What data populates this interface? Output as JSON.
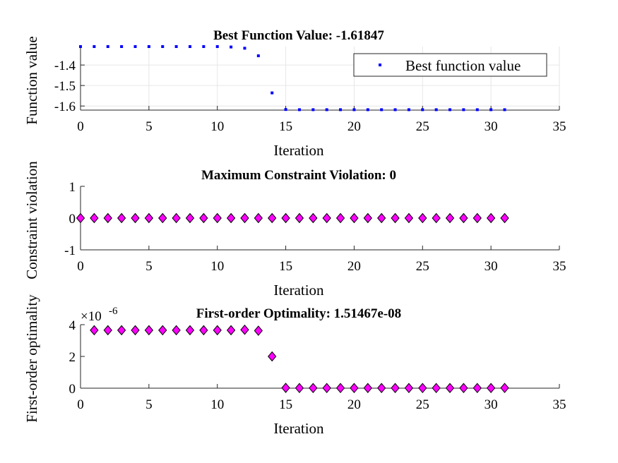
{
  "chart_data": [
    {
      "type": "scatter",
      "title": "Best Function Value: -1.61847",
      "xlabel": "Iteration",
      "ylabel": "Function value",
      "xlim": [
        0,
        35
      ],
      "ylim": [
        -1.62,
        -1.31
      ],
      "xticks": [
        "0",
        "5",
        "10",
        "15",
        "20",
        "25",
        "30",
        "35"
      ],
      "yticks": [
        "-1.4",
        "-1.5",
        "-1.6"
      ],
      "ytick_values": [
        -1.4,
        -1.5,
        -1.6
      ],
      "grid": true,
      "legend": {
        "position": "top-right",
        "entries": [
          "Best function value"
        ]
      },
      "series": [
        {
          "name": "Best function value",
          "color": "#0000ff",
          "marker": "point",
          "x": [
            0,
            1,
            2,
            3,
            4,
            5,
            6,
            7,
            8,
            9,
            10,
            11,
            12,
            13,
            14,
            15,
            16,
            17,
            18,
            19,
            20,
            21,
            22,
            23,
            24,
            25,
            26,
            27,
            28,
            29,
            30,
            31
          ],
          "values": [
            -1.31,
            -1.31,
            -1.31,
            -1.31,
            -1.31,
            -1.31,
            -1.31,
            -1.31,
            -1.31,
            -1.31,
            -1.31,
            -1.312,
            -1.318,
            -1.355,
            -1.536,
            -1.617,
            -1.618,
            -1.618,
            -1.618,
            -1.618,
            -1.618,
            -1.618,
            -1.618,
            -1.618,
            -1.618,
            -1.618,
            -1.618,
            -1.618,
            -1.618,
            -1.618,
            -1.618,
            -1.618
          ]
        }
      ]
    },
    {
      "type": "scatter",
      "title": "Maximum Constraint Violation: 0",
      "xlabel": "Iteration",
      "ylabel": "Constraint violation",
      "xlim": [
        0,
        35
      ],
      "ylim": [
        -1,
        1
      ],
      "xticks": [
        "0",
        "5",
        "10",
        "15",
        "20",
        "25",
        "30",
        "35"
      ],
      "yticks": [
        "1",
        "0",
        "-1"
      ],
      "ytick_values": [
        1,
        0,
        -1
      ],
      "grid": false,
      "series": [
        {
          "color": "#ff00ff",
          "marker": "diamond",
          "x": [
            0,
            1,
            2,
            3,
            4,
            5,
            6,
            7,
            8,
            9,
            10,
            11,
            12,
            13,
            14,
            15,
            16,
            17,
            18,
            19,
            20,
            21,
            22,
            23,
            24,
            25,
            26,
            27,
            28,
            29,
            30,
            31
          ],
          "values": [
            0,
            0,
            0,
            0,
            0,
            0,
            0,
            0,
            0,
            0,
            0,
            0,
            0,
            0,
            0,
            0,
            0,
            0,
            0,
            0,
            0,
            0,
            0,
            0,
            0,
            0,
            0,
            0,
            0,
            0,
            0,
            0
          ]
        }
      ]
    },
    {
      "type": "scatter",
      "title": "First-order Optimality: 1.51467e-08",
      "xlabel": "Iteration",
      "ylabel": "First-order optimality",
      "exponent_base": "×10",
      "exponent_power": "-6",
      "xlim": [
        0,
        35
      ],
      "ylim": [
        0,
        4
      ],
      "xticks": [
        "0",
        "5",
        "10",
        "15",
        "20",
        "25",
        "30",
        "35"
      ],
      "yticks": [
        "4",
        "2",
        "0"
      ],
      "ytick_values": [
        4,
        2,
        0
      ],
      "grid": false,
      "series": [
        {
          "color": "#ff00ff",
          "marker": "diamond",
          "x": [
            1,
            2,
            3,
            4,
            5,
            6,
            7,
            8,
            9,
            10,
            11,
            12,
            13,
            14,
            15,
            16,
            17,
            18,
            19,
            20,
            21,
            22,
            23,
            24,
            25,
            26,
            27,
            28,
            29,
            30,
            31
          ],
          "values": [
            3.65,
            3.65,
            3.65,
            3.65,
            3.65,
            3.65,
            3.65,
            3.65,
            3.65,
            3.65,
            3.65,
            3.68,
            3.62,
            2.0,
            0.02,
            0.01,
            0.01,
            0.01,
            0.01,
            0.01,
            0.01,
            0.01,
            0.01,
            0.01,
            0.01,
            0.01,
            0.01,
            0.01,
            0.01,
            0.01,
            0.0151467
          ]
        }
      ]
    }
  ]
}
